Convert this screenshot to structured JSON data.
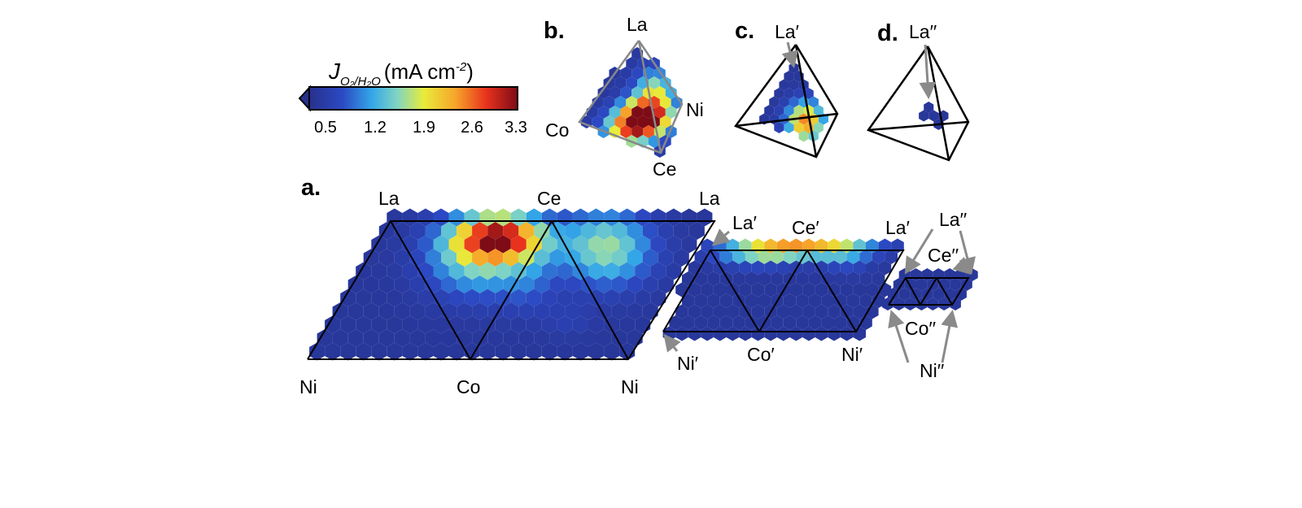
{
  "colorbar": {
    "title_symbol": "J",
    "title_subscript": "O₂/H₂O",
    "title_units": "(mA cm",
    "title_exp": "-2",
    "title_close": ")",
    "ticks": [
      "0.5",
      "1.2",
      "1.9",
      "2.6",
      "3.3"
    ],
    "range": [
      0.2,
      3.4
    ]
  },
  "panels": {
    "a": "a.",
    "b": "b.",
    "c": "c.",
    "d": "d."
  },
  "panel_a_labels": {
    "la1": "La",
    "ce1": "Ce",
    "la2": "La",
    "ni1": "Ni",
    "co1": "Co",
    "ni2": "Ni",
    "la_p1": "La′",
    "ce_p": "Ce′",
    "la_p2": "La′",
    "ni_p1": "Ni′",
    "co_p": "Co′",
    "ni_p2": "Ni′",
    "la_pp": "La′′",
    "ce_pp": "Ce′′",
    "co_pp": "Co′′",
    "ni_pp": "Ni′′"
  },
  "panel_b_labels": {
    "la": "La",
    "ni": "Ni",
    "co": "Co",
    "ce": "Ce"
  },
  "panel_c_labels": {
    "la": "La′"
  },
  "panel_d_labels": {
    "la": "La′′"
  },
  "colors": {
    "dark_blue": "#26328f",
    "line": "#000000",
    "arrow": "#8a8a8a"
  }
}
